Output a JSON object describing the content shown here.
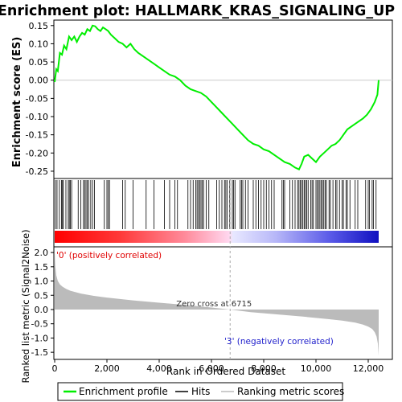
{
  "title": "Enrichment plot: HALLMARK_KRAS_SIGNALING_UP",
  "chart_data": [
    {
      "type": "line",
      "panel": "enrichment",
      "ylabel": "Enrichment score (ES)",
      "ylim": [
        -0.27,
        0.165
      ],
      "yticks": [
        -0.25,
        -0.2,
        -0.15,
        -0.1,
        -0.05,
        0.0,
        0.05,
        0.1,
        0.15
      ],
      "ytick_labels": [
        "-0.25",
        "-0.20",
        "-0.15",
        "-0.10",
        "-0.05",
        "0.00",
        "0.05",
        "0.10",
        "0.15"
      ],
      "xlim": [
        0,
        12500
      ],
      "series": [
        {
          "name": "Enrichment profile",
          "color": "#00ee00",
          "x": [
            0,
            60,
            120,
            200,
            280,
            360,
            450,
            550,
            650,
            750,
            850,
            950,
            1050,
            1150,
            1250,
            1350,
            1450,
            1550,
            1650,
            1750,
            1850,
            1950,
            2050,
            2150,
            2300,
            2450,
            2600,
            2750,
            2900,
            3050,
            3200,
            3400,
            3600,
            3800,
            4000,
            4200,
            4400,
            4600,
            4800,
            5000,
            5200,
            5400,
            5600,
            5800,
            6000,
            6200,
            6400,
            6600,
            6800,
            7000,
            7200,
            7400,
            7600,
            7800,
            8000,
            8200,
            8400,
            8600,
            8800,
            9000,
            9200,
            9350,
            9450,
            9550,
            9700,
            9850,
            10000,
            10150,
            10300,
            10450,
            10600,
            10750,
            10900,
            11050,
            11200,
            11400,
            11600,
            11800,
            11950,
            12100,
            12250,
            12350,
            12400
          ],
          "y": [
            -0.005,
            0.03,
            0.025,
            0.075,
            0.07,
            0.095,
            0.085,
            0.12,
            0.11,
            0.12,
            0.105,
            0.12,
            0.13,
            0.125,
            0.14,
            0.135,
            0.15,
            0.148,
            0.14,
            0.135,
            0.145,
            0.14,
            0.135,
            0.125,
            0.115,
            0.105,
            0.1,
            0.09,
            0.1,
            0.085,
            0.075,
            0.065,
            0.055,
            0.045,
            0.035,
            0.025,
            0.015,
            0.01,
            0.0,
            -0.015,
            -0.025,
            -0.03,
            -0.035,
            -0.045,
            -0.06,
            -0.075,
            -0.09,
            -0.105,
            -0.12,
            -0.135,
            -0.15,
            -0.165,
            -0.175,
            -0.18,
            -0.19,
            -0.195,
            -0.205,
            -0.215,
            -0.225,
            -0.23,
            -0.24,
            -0.245,
            -0.23,
            -0.21,
            -0.205,
            -0.215,
            -0.225,
            -0.21,
            -0.2,
            -0.19,
            -0.18,
            -0.175,
            -0.165,
            -0.15,
            -0.135,
            -0.125,
            -0.115,
            -0.105,
            -0.095,
            -0.08,
            -0.06,
            -0.04,
            0.0
          ]
        }
      ]
    },
    {
      "type": "hits",
      "panel": "hits",
      "legend_label": "Hits",
      "positions": [
        30,
        90,
        180,
        260,
        300,
        330,
        430,
        520,
        560,
        600,
        650,
        900,
        1000,
        1100,
        1150,
        1200,
        1250,
        1300,
        1380,
        1450,
        1520,
        1900,
        2000,
        2050,
        2100,
        2600,
        2700,
        3000,
        3500,
        3800,
        4200,
        4400,
        4600,
        4700,
        5100,
        5200,
        5300,
        5400,
        5450,
        5500,
        5550,
        5600,
        5650,
        5700,
        5800,
        5900,
        6200,
        6300,
        6400,
        6500,
        6550,
        6600,
        6700,
        6800,
        6850,
        6900,
        7100,
        7150,
        7200,
        7300,
        7400,
        7600,
        7700,
        7800,
        7900,
        8000,
        8100,
        8200,
        8300,
        8400,
        8700,
        8750,
        8800,
        9000,
        9100,
        9200,
        9300,
        9350,
        9400,
        9450,
        9500,
        9550,
        9600,
        9650,
        9700,
        9800,
        9850,
        9900,
        10000,
        10050,
        10100,
        10150,
        10200,
        10250,
        10300,
        10350,
        10400,
        10500,
        10550,
        10650,
        10750,
        10800,
        10900,
        11000,
        11050,
        11150,
        11200,
        11300,
        11500,
        11600,
        11900,
        12000,
        12050,
        12150,
        12200,
        12300
      ]
    },
    {
      "type": "area",
      "panel": "ranked_metric",
      "ylabel": "Ranked list metric (Signal2Noise)",
      "xlabel": "Rank in Ordered Dataset",
      "ylim": [
        -1.75,
        2.2
      ],
      "yticks": [
        -1.5,
        -1.0,
        -0.5,
        0.0,
        0.5,
        1.0,
        1.5,
        2.0
      ],
      "ytick_labels": [
        "-1.5",
        "-1.0",
        "-0.5",
        "0.0",
        "0.5",
        "1.0",
        "1.5",
        "2.0"
      ],
      "xticks": [
        0,
        2000,
        4000,
        6000,
        8000,
        10000,
        12000
      ],
      "xtick_labels": [
        "0",
        "2,000",
        "4,000",
        "6,000",
        "8,000",
        "10,000",
        "12,000"
      ],
      "xlim": [
        0,
        12500
      ],
      "zero_cross": 6715,
      "zero_cross_label": "Zero cross at 6715",
      "pos_label": "'0' (positively correlated)",
      "neg_label": "'3' (negatively correlated)",
      "legend_label": "Ranking metric scores",
      "x": [
        0,
        20,
        60,
        120,
        200,
        300,
        450,
        600,
        800,
        1000,
        1500,
        2000,
        3000,
        4000,
        5000,
        6000,
        6715,
        7500,
        8500,
        9500,
        10500,
        11000,
        11500,
        11800,
        12000,
        12150,
        12250,
        12320,
        12370,
        12400
      ],
      "values": [
        2.0,
        1.55,
        1.2,
        1.0,
        0.88,
        0.8,
        0.72,
        0.66,
        0.61,
        0.56,
        0.48,
        0.42,
        0.32,
        0.24,
        0.16,
        0.07,
        0.0,
        -0.09,
        -0.17,
        -0.25,
        -0.34,
        -0.39,
        -0.46,
        -0.53,
        -0.6,
        -0.68,
        -0.8,
        -0.95,
        -1.2,
        -1.62
      ]
    }
  ],
  "legend": {
    "items": [
      {
        "label": "Enrichment profile",
        "color": "#00ee00"
      },
      {
        "label": "Hits",
        "color": "#000000"
      },
      {
        "label": "Ranking metric scores",
        "color": "#bbbbbb"
      }
    ]
  }
}
